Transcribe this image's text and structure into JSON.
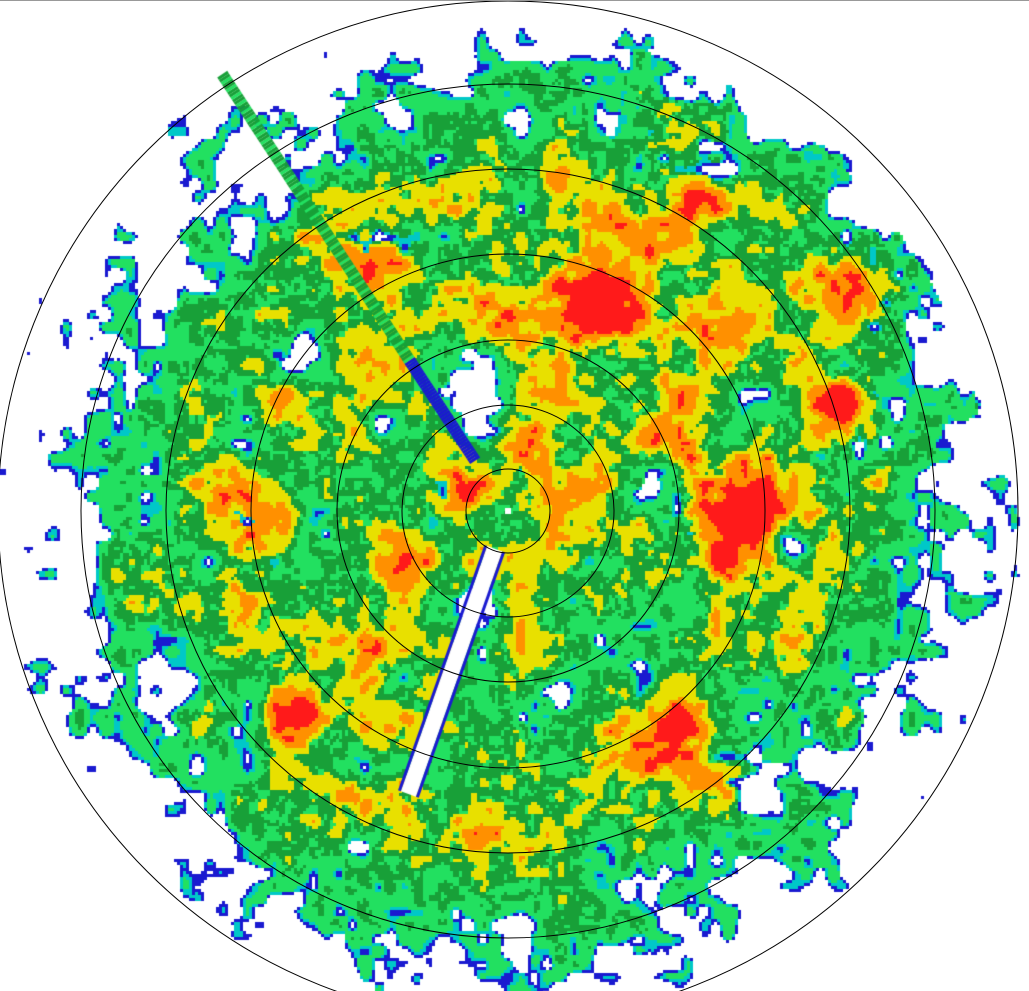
{
  "radar": {
    "product": "reflectivity-ppi",
    "range_ring_count": 7,
    "ring_color": "#000000",
    "background": "#ffffff",
    "color_scale": [
      "#1a1ad0",
      "#00c8c8",
      "#22e060",
      "#18a038",
      "#e8e000",
      "#ff9000",
      "#ff1a1a"
    ]
  }
}
